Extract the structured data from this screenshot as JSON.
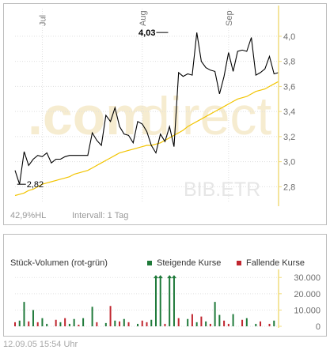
{
  "colors": {
    "axis_yellow": "#f1dc7c",
    "price_line": "#000000",
    "moving_average": "#f2c400",
    "rising": "#1f7a3a",
    "falling": "#c0262f",
    "watermark": "#f6ecd0"
  },
  "watermark": {
    "part1": ".com",
    "part2": "direct",
    "symbol": "BIB.ETR"
  },
  "footer": {
    "percent": "42,9%HL",
    "interval": "Intervall: 1 Tag"
  },
  "volume_panel": {
    "title": "Stück-Volumen (rot-grün)",
    "legend_up": "Steigende Kurse",
    "legend_down": "Fallende Kurse"
  },
  "timestamp": "12.09.05   15:54 Uhr",
  "chart_data": [
    {
      "type": "line",
      "title": "",
      "months": [
        {
          "label": "Jul",
          "index": 6
        },
        {
          "label": "Aug",
          "index": 28
        },
        {
          "label": "Sep",
          "index": 47
        }
      ],
      "yticks": [
        "2,8",
        "3,0",
        "3,2",
        "3,4",
        "3,6",
        "3,8",
        "4,0"
      ],
      "ylim": [
        2.67,
        4.22
      ],
      "grid": true,
      "annotations": [
        {
          "label": "2,82",
          "index": 1,
          "value": 2.82
        },
        {
          "label": "4,03",
          "index": 33,
          "value": 4.03
        }
      ],
      "series": [
        {
          "values": [
            2.93,
            2.82,
            3.08,
            2.97,
            3.02,
            3.05,
            3.04,
            3.07,
            2.99,
            3.02,
            3.02,
            3.04,
            3.05,
            3.05,
            3.05,
            3.05,
            3.05,
            3.23,
            3.17,
            3.13,
            3.37,
            3.32,
            3.43,
            3.28,
            3.22,
            3.21,
            3.15,
            3.32,
            3.3,
            3.24,
            3.13,
            3.07,
            3.22,
            3.16,
            3.28,
            3.12,
            3.71,
            3.68,
            3.7,
            3.69,
            4.03,
            3.8,
            3.75,
            3.73,
            3.72,
            3.54,
            3.68,
            3.87,
            3.72,
            3.88,
            3.89,
            3.88,
            3.99,
            3.69,
            3.71,
            3.74,
            3.84,
            3.7,
            3.71
          ]
        },
        {
          "values": [
            2.73,
            2.74,
            2.75,
            2.77,
            2.78,
            2.8,
            2.82,
            2.83,
            2.84,
            2.85,
            2.86,
            2.87,
            2.88,
            2.9,
            2.91,
            2.92,
            2.93,
            2.95,
            2.97,
            2.99,
            3.01,
            3.03,
            3.05,
            3.07,
            3.08,
            3.09,
            3.1,
            3.11,
            3.12,
            3.13,
            3.13,
            3.14,
            3.15,
            3.17,
            3.19,
            3.21,
            3.23,
            3.25,
            3.28,
            3.3,
            3.32,
            3.34,
            3.36,
            3.38,
            3.4,
            3.42,
            3.44,
            3.46,
            3.48,
            3.5,
            3.51,
            3.52,
            3.54,
            3.56,
            3.57,
            3.58,
            3.6,
            3.62,
            3.64
          ]
        }
      ]
    },
    {
      "type": "bar",
      "title": "",
      "yticks": [
        "0",
        "10.000",
        "20.000",
        "30.000"
      ],
      "ylim": [
        0,
        34000
      ],
      "grid": true,
      "bars": [
        {
          "index": 0,
          "value": 2500,
          "dir": "down"
        },
        {
          "index": 1,
          "value": 3500,
          "dir": "up"
        },
        {
          "index": 2,
          "value": 15000,
          "dir": "up"
        },
        {
          "index": 3,
          "value": 3000,
          "dir": "down"
        },
        {
          "index": 4,
          "value": 10000,
          "dir": "up"
        },
        {
          "index": 5,
          "value": 2500,
          "dir": "down"
        },
        {
          "index": 6,
          "value": 5000,
          "dir": "up"
        },
        {
          "index": 7,
          "value": 1500,
          "dir": "up"
        },
        {
          "index": 9,
          "value": 4000,
          "dir": "down"
        },
        {
          "index": 10,
          "value": 2500,
          "dir": "up"
        },
        {
          "index": 11,
          "value": 5000,
          "dir": "down"
        },
        {
          "index": 12,
          "value": 1500,
          "dir": "up"
        },
        {
          "index": 13,
          "value": 4500,
          "dir": "up"
        },
        {
          "index": 14,
          "value": 1000,
          "dir": "down"
        },
        {
          "index": 15,
          "value": 5000,
          "dir": "up"
        },
        {
          "index": 17,
          "value": 12000,
          "dir": "up"
        },
        {
          "index": 18,
          "value": 2500,
          "dir": "down"
        },
        {
          "index": 20,
          "value": 2000,
          "dir": "up"
        },
        {
          "index": 21,
          "value": 12500,
          "dir": "down"
        },
        {
          "index": 22,
          "value": 3500,
          "dir": "up"
        },
        {
          "index": 23,
          "value": 3000,
          "dir": "down"
        },
        {
          "index": 24,
          "value": 4500,
          "dir": "up"
        },
        {
          "index": 25,
          "value": 2500,
          "dir": "down"
        },
        {
          "index": 27,
          "value": 1500,
          "dir": "up"
        },
        {
          "index": 28,
          "value": 3500,
          "dir": "down"
        },
        {
          "index": 29,
          "value": 2500,
          "dir": "down"
        },
        {
          "index": 30,
          "value": 4000,
          "dir": "up"
        },
        {
          "index": 31,
          "value": 31000,
          "dir": "up"
        },
        {
          "index": 32,
          "value": 31000,
          "dir": "up"
        },
        {
          "index": 33,
          "value": 1500,
          "dir": "down"
        },
        {
          "index": 34,
          "value": 31000,
          "dir": "up"
        },
        {
          "index": 35,
          "value": 31000,
          "dir": "up"
        },
        {
          "index": 36,
          "value": 5000,
          "dir": "down"
        },
        {
          "index": 38,
          "value": 4500,
          "dir": "up"
        },
        {
          "index": 39,
          "value": 7500,
          "dir": "down"
        },
        {
          "index": 40,
          "value": 2500,
          "dir": "up"
        },
        {
          "index": 41,
          "value": 6000,
          "dir": "down"
        },
        {
          "index": 42,
          "value": 3000,
          "dir": "up"
        },
        {
          "index": 43,
          "value": 1500,
          "dir": "down"
        },
        {
          "index": 44,
          "value": 15000,
          "dir": "up"
        },
        {
          "index": 45,
          "value": 7000,
          "dir": "up"
        },
        {
          "index": 46,
          "value": 3500,
          "dir": "down"
        },
        {
          "index": 47,
          "value": 1500,
          "dir": "down"
        },
        {
          "index": 48,
          "value": 7500,
          "dir": "up"
        },
        {
          "index": 50,
          "value": 4000,
          "dir": "down"
        },
        {
          "index": 51,
          "value": 5000,
          "dir": "up"
        },
        {
          "index": 53,
          "value": 1500,
          "dir": "up"
        },
        {
          "index": 54,
          "value": 3000,
          "dir": "down"
        },
        {
          "index": 56,
          "value": 1500,
          "dir": "down"
        },
        {
          "index": 57,
          "value": 3500,
          "dir": "up"
        }
      ]
    }
  ]
}
